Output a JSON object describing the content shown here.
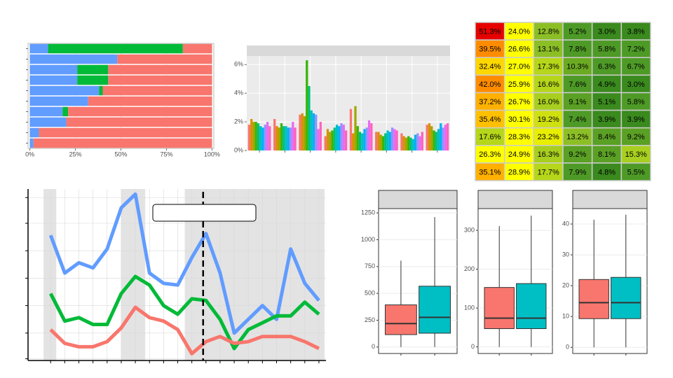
{
  "chart_data": [
    {
      "type": "hbar_stacked",
      "categories": [
        null,
        null,
        null,
        null,
        null,
        null,
        null,
        null,
        null,
        null
      ],
      "series": [
        {
          "color": "#619CFF",
          "values": [
            10,
            48,
            26,
            26,
            38,
            32,
            18,
            20,
            5,
            2
          ]
        },
        {
          "color": "#00BA38",
          "values": [
            74,
            0,
            17,
            17,
            2,
            0,
            3,
            0,
            0,
            0
          ]
        },
        {
          "color": "#F8766D",
          "values": [
            16,
            52,
            57,
            57,
            60,
            68,
            79,
            80,
            95,
            98
          ]
        }
      ],
      "xlim": [
        -1,
        101
      ],
      "xticks": [
        {
          "value": 0,
          "label": "0%"
        },
        {
          "value": 25,
          "label": "25%"
        },
        {
          "value": 50,
          "label": "50%"
        },
        {
          "value": 75,
          "label": "75%"
        },
        {
          "value": 100,
          "label": "100%"
        }
      ],
      "grid": true
    },
    {
      "type": "bar_grouped",
      "categories": [
        null,
        null,
        null,
        null,
        null,
        null,
        null,
        null
      ],
      "series": [
        {
          "color": "#F8766D",
          "values": [
            1.8,
            2.2,
            2.5,
            1.0,
            2.9,
            1.3,
            1.2,
            1.8
          ]
        },
        {
          "color": "#D89000",
          "values": [
            2.2,
            1.7,
            2.6,
            1.5,
            1.2,
            1.3,
            1.0,
            1.9
          ]
        },
        {
          "color": "#A3A500",
          "values": [
            2.0,
            1.6,
            2.4,
            1.3,
            3.1,
            1.1,
            0.9,
            1.7
          ]
        },
        {
          "color": "#39B600",
          "values": [
            2.0,
            1.9,
            6.3,
            1.4,
            1.7,
            1.0,
            1.0,
            1.4
          ]
        },
        {
          "color": "#00BF7D",
          "values": [
            1.9,
            1.7,
            4.5,
            1.6,
            1.3,
            1.2,
            0.9,
            1.3
          ]
        },
        {
          "color": "#00BFC4",
          "values": [
            1.7,
            1.7,
            2.8,
            1.8,
            1.2,
            1.4,
            0.8,
            1.5
          ]
        },
        {
          "color": "#00B0F6",
          "values": [
            1.6,
            1.6,
            2.6,
            1.7,
            1.5,
            1.3,
            1.1,
            1.9
          ]
        },
        {
          "color": "#9590FF",
          "values": [
            1.8,
            1.6,
            2.5,
            1.9,
            1.6,
            1.6,
            1.2,
            1.6
          ]
        },
        {
          "color": "#E76BF3",
          "values": [
            2.0,
            2.0,
            1.5,
            1.8,
            2.1,
            1.5,
            1.0,
            1.8
          ]
        },
        {
          "color": "#FF62BC",
          "values": [
            1.7,
            1.6,
            2.0,
            1.4,
            1.9,
            1.4,
            1.3,
            1.9
          ]
        }
      ],
      "ylim": [
        0,
        6.6
      ],
      "yticks": [
        {
          "value": 0,
          "label": "0%"
        },
        {
          "value": 2,
          "label": "2%"
        },
        {
          "value": 4,
          "label": "4%"
        },
        {
          "value": 6,
          "label": "6%"
        }
      ],
      "grid": true
    },
    {
      "type": "heatmap",
      "values": [
        [
          51.3,
          24.0,
          12.8,
          5.2,
          3.0,
          3.8
        ],
        [
          39.5,
          26.6,
          13.1,
          7.8,
          5.8,
          7.2
        ],
        [
          32.4,
          27.0,
          17.3,
          10.3,
          6.3,
          6.7
        ],
        [
          42.0,
          25.9,
          16.6,
          7.6,
          4.9,
          3.0
        ],
        [
          37.2,
          26.7,
          16.0,
          9.1,
          5.1,
          5.8
        ],
        [
          35.4,
          30.1,
          19.2,
          7.4,
          3.9,
          3.9
        ],
        [
          17.6,
          28.3,
          23.2,
          13.2,
          8.4,
          9.2
        ],
        [
          26.3,
          24.9,
          16.3,
          9.2,
          8.1,
          15.3
        ],
        [
          35.1,
          28.9,
          17.7,
          7.9,
          4.8,
          5.5
        ]
      ],
      "value_labels": [
        [
          "51.3%",
          "24.0%",
          "12.8%",
          "5.2%",
          "3.0%",
          "3.8%"
        ],
        [
          "39.5%",
          "26.6%",
          "13.1%",
          "7.8%",
          "5.8%",
          "7.2%"
        ],
        [
          "32.4%",
          "27.0%",
          "17.3%",
          "10.3%",
          "6.3%",
          "6.7%"
        ],
        [
          "42.0%",
          "25.9%",
          "16.6%",
          "7.6%",
          "4.9%",
          "3.0%"
        ],
        [
          "37.2%",
          "26.7%",
          "16.0%",
          "9.1%",
          "5.1%",
          "5.8%"
        ],
        [
          "35.4%",
          "30.1%",
          "19.2%",
          "7.4%",
          "3.9%",
          "3.9%"
        ],
        [
          "17.6%",
          "28.3%",
          "23.2%",
          "13.2%",
          "8.4%",
          "9.2%"
        ],
        [
          "26.3%",
          "24.9%",
          "16.3%",
          "9.2%",
          "8.1%",
          "15.3%"
        ],
        [
          "35.1%",
          "28.9%",
          "17.7%",
          "7.9%",
          "4.8%",
          "5.5%"
        ]
      ],
      "colors": [
        [
          "#e60000",
          "#ffff00",
          "#8cbf26",
          "#4e9a26",
          "#3a8a1e",
          "#3a8a1e"
        ],
        [
          "#ff8c00",
          "#ffff00",
          "#8cbf26",
          "#4e9a26",
          "#4e9a26",
          "#4e9a26"
        ],
        [
          "#ffd700",
          "#ffff00",
          "#b5d61a",
          "#6aab22",
          "#4e9a26",
          "#4e9a26"
        ],
        [
          "#ff8c00",
          "#ffff00",
          "#b5d61a",
          "#4e9a26",
          "#3a8a1e",
          "#3a8a1e"
        ],
        [
          "#ffb000",
          "#ffff00",
          "#a8cf1f",
          "#5aa024",
          "#3a8a1e",
          "#4e9a26"
        ],
        [
          "#ffc000",
          "#ffff00",
          "#cfe010",
          "#4e9a26",
          "#3a8a1e",
          "#3a8a1e"
        ],
        [
          "#b5d61a",
          "#ffff00",
          "#e8ee00",
          "#8cbf26",
          "#5aa024",
          "#5aa024"
        ],
        [
          "#ffff00",
          "#ffff00",
          "#a8cf1f",
          "#5aa024",
          "#5aa024",
          "#a8cf1f"
        ],
        [
          "#ffb000",
          "#ffff00",
          "#b5d61a",
          "#4e9a26",
          "#3a8a1e",
          "#4e9a26"
        ]
      ]
    },
    {
      "type": "line",
      "x": [
        0,
        1,
        2,
        3,
        4,
        5,
        6,
        7,
        8,
        9,
        10,
        11,
        12,
        13,
        14,
        15,
        16,
        17,
        18,
        19
      ],
      "series": [
        {
          "color": "#619CFF",
          "values": [
            73,
            51,
            57,
            54,
            65,
            89,
            97,
            51,
            45,
            44,
            60,
            74,
            51,
            16,
            24,
            32,
            24,
            65,
            45,
            35
          ]
        },
        {
          "color": "#00BA38",
          "values": [
            39,
            23,
            25,
            21,
            21,
            39,
            49,
            44,
            32,
            27,
            36,
            35,
            24,
            7,
            18,
            22,
            26,
            26,
            34,
            27
          ]
        },
        {
          "color": "#F8766D",
          "values": [
            18,
            10,
            8,
            8,
            11,
            19,
            31,
            25,
            23,
            18,
            4,
            11,
            14,
            10,
            11,
            14,
            14,
            14,
            11,
            7
          ]
        }
      ],
      "xlim": [
        -1.6,
        19.5
      ],
      "ylim": [
        0,
        100
      ],
      "xticks": [
        0,
        1,
        2,
        3,
        4,
        5,
        6,
        7,
        8,
        9,
        10,
        11,
        12,
        13,
        14,
        15,
        16,
        17,
        18,
        19
      ],
      "yticks": [
        1,
        16,
        32,
        48,
        64,
        80,
        95
      ],
      "bands": [
        [
          -0.5,
          0.4
        ],
        [
          5.0,
          6.7
        ],
        [
          9.5,
          19.4
        ]
      ],
      "vline": 10.8,
      "grid": true
    },
    {
      "type": "box",
      "ylim": [
        -60,
        1290
      ],
      "yticks": [
        0,
        250,
        500,
        750,
        1000,
        1250
      ],
      "boxes": [
        {
          "color": "#F8766D",
          "min": 0,
          "q1": 116,
          "median": 219,
          "q3": 393,
          "max": 805
        },
        {
          "color": "#00BFC4",
          "min": 0,
          "q1": 129,
          "median": 277,
          "q3": 567,
          "max": 1211
        }
      ]
    },
    {
      "type": "box",
      "ylim": [
        -17,
        356
      ],
      "yticks": [
        0,
        100,
        200,
        300
      ],
      "boxes": [
        {
          "color": "#F8766D",
          "min": 0,
          "q1": 47,
          "median": 74,
          "q3": 153,
          "max": 311
        },
        {
          "color": "#00BFC4",
          "min": 0,
          "q1": 47,
          "median": 74,
          "q3": 163,
          "max": 338
        }
      ]
    },
    {
      "type": "box",
      "ylim": [
        -2,
        45
      ],
      "yticks": [
        0,
        10,
        20,
        30,
        40
      ],
      "boxes": [
        {
          "color": "#F8766D",
          "min": 0,
          "q1": 9.3,
          "median": 14.5,
          "q3": 22,
          "max": 41.4
        },
        {
          "color": "#00BFC4",
          "min": 0,
          "q1": 9.3,
          "median": 14.5,
          "q3": 22.7,
          "max": 43
        }
      ]
    }
  ]
}
